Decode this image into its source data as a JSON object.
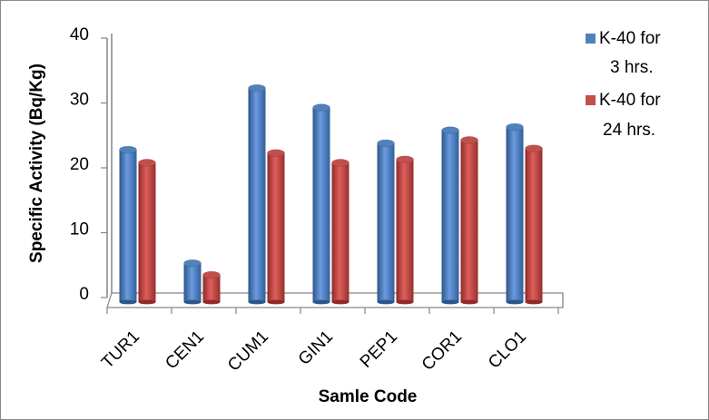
{
  "chart_data": {
    "type": "bar",
    "title": "",
    "xlabel": "Samle Code",
    "ylabel": "Specific Activity (Bq/Kg)",
    "ylim": [
      0,
      40
    ],
    "yticks": [
      0,
      10,
      20,
      30,
      40
    ],
    "grid": false,
    "legend_position": "right",
    "categories": [
      "TUR1",
      "CEN1",
      "CUM1",
      "GIN1",
      "PEP1",
      "COR1",
      "CLO1"
    ],
    "series": [
      {
        "name": "K-40 for 3 hrs.",
        "legend_lines": [
          "K-40 for",
          "3 hrs."
        ],
        "color": "#4f81bd",
        "values": [
          22.5,
          5,
          32,
          29,
          23.5,
          25.5,
          26
        ]
      },
      {
        "name": "K-40 for 24 hrs.",
        "legend_lines": [
          "K-40 for",
          "24 hrs."
        ],
        "color": "#c0504d",
        "values": [
          20.5,
          3.2,
          22,
          20.5,
          21,
          24,
          22.7
        ]
      }
    ]
  }
}
